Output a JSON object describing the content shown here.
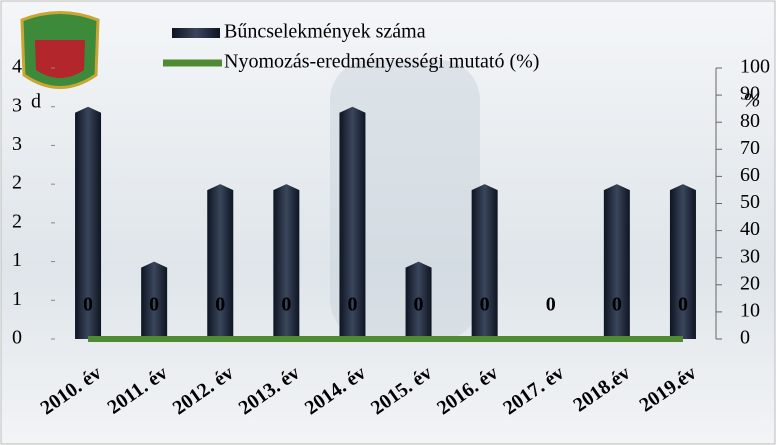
{
  "chart_data": {
    "type": "bar_line",
    "categories": [
      "2010. év",
      "2011. év",
      "2012. év",
      "2013. év",
      "2014. év",
      "2015. év",
      "2016. év",
      "2017. év",
      "2018.év",
      "2019.év"
    ],
    "series": [
      {
        "name": "Bűncselekmények száma",
        "color": "#1f2a3d",
        "type": "bar",
        "values": [
          3,
          1,
          2,
          2,
          3,
          1,
          2,
          0,
          2,
          2
        ]
      },
      {
        "name": "Nyomozás-eredményességi mutató (%)",
        "color": "#4e8a32",
        "type": "line",
        "axis": "y2",
        "values": [
          0,
          0,
          0,
          0,
          0,
          0,
          0,
          0,
          0,
          0
        ]
      }
    ],
    "ylabel": "d",
    "y2label": "%",
    "ylim": [
      0,
      3.5
    ],
    "yticks": [
      0,
      {
        "value": 0.5,
        "label": "1"
      },
      {
        "value": 1,
        "label": "1"
      },
      {
        "value": 1.5,
        "label": "2"
      },
      {
        "value": 2,
        "label": "2"
      },
      {
        "value": 2.5,
        "label": "3"
      },
      {
        "value": 3,
        "label": "3"
      },
      {
        "value": 3.5,
        "label": "4"
      }
    ],
    "y2lim": [
      0,
      100
    ],
    "y2ticks": [
      0,
      10,
      20,
      30,
      40,
      50,
      60,
      70,
      80,
      90,
      100
    ],
    "legend": "top"
  }
}
